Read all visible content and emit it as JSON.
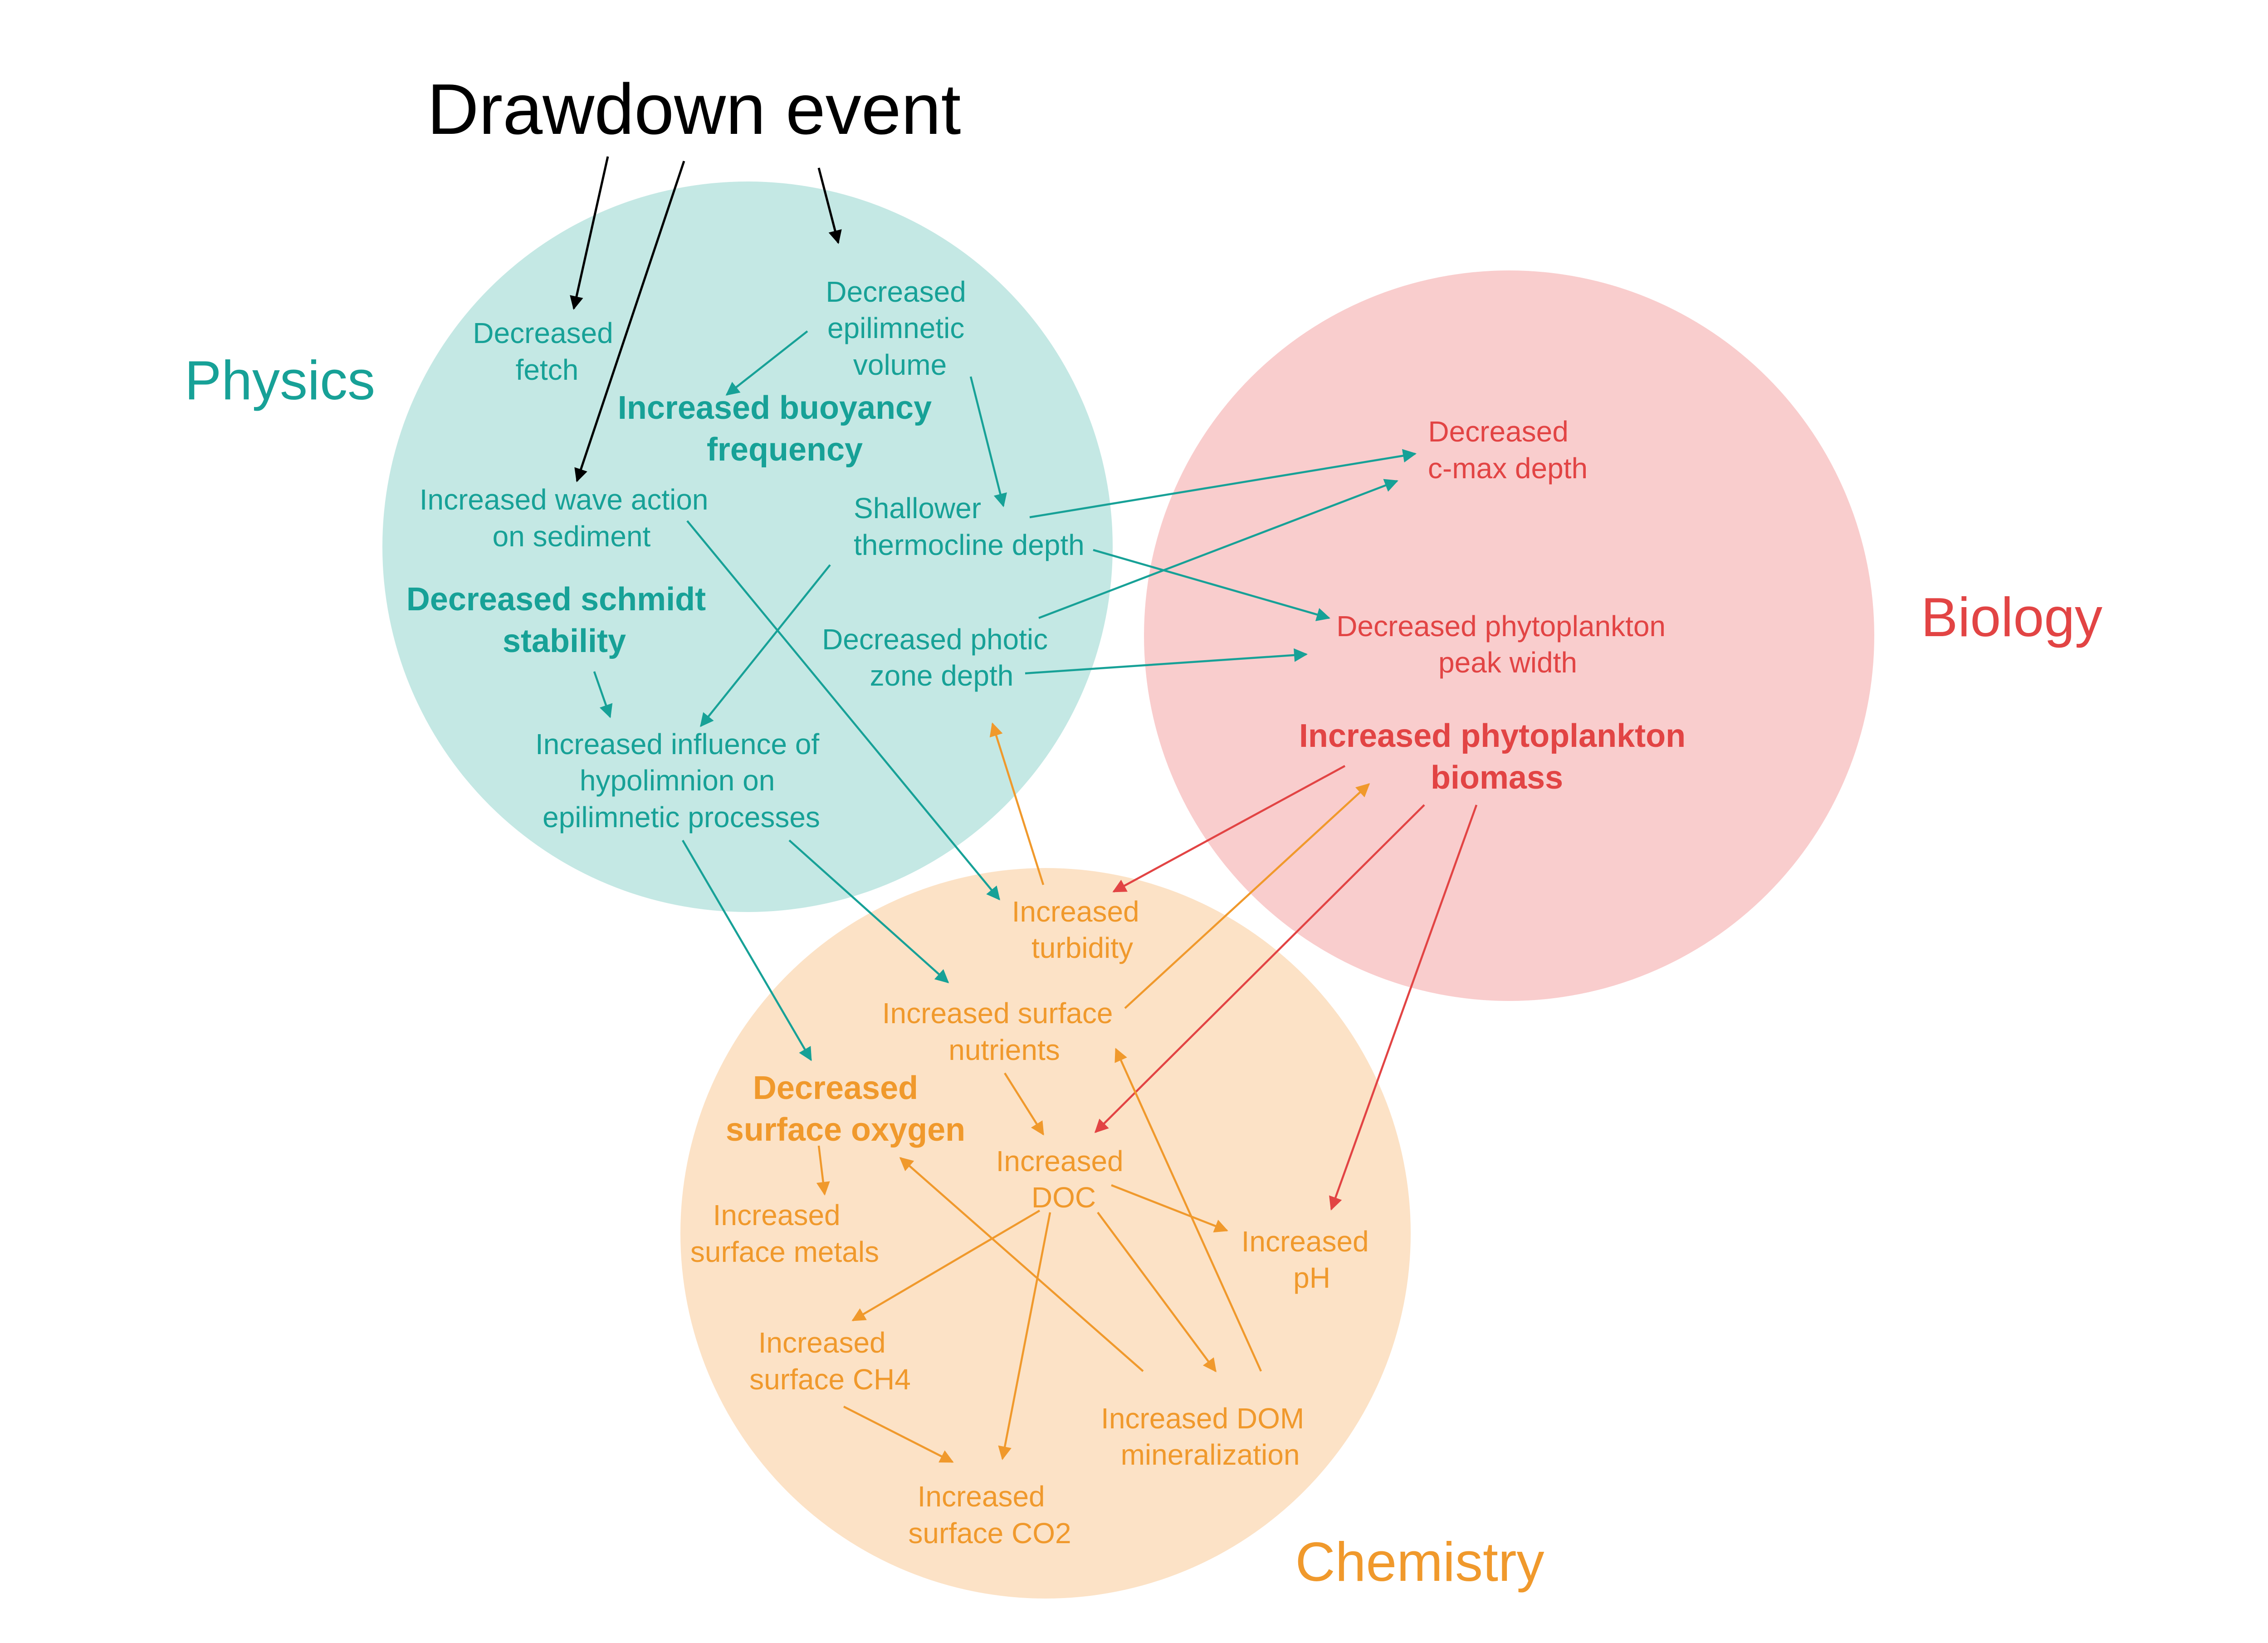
{
  "title": "Drawdown event",
  "colors": {
    "physics_fill": "#c4e8e4",
    "physics_text": "#17a197",
    "biology_fill": "#f9cdcd",
    "biology_text": "#e24444",
    "chemistry_fill": "#fce2c6",
    "chemistry_text": "#f0992c",
    "title_text": "#000000"
  },
  "groups": {
    "physics": "Physics",
    "biology": "Biology",
    "chemistry": "Chemistry"
  },
  "nodes": {
    "decreased_fetch": [
      "Decreased",
      "fetch"
    ],
    "decreased_epi_volume": [
      "Decreased",
      "epilimnetic",
      "volume"
    ],
    "increased_buoyancy": [
      "Increased buoyancy",
      "frequency"
    ],
    "increased_wave_action": [
      "Increased wave action",
      "on sediment"
    ],
    "shallower_thermocline": [
      "Shallower",
      "thermocline depth"
    ],
    "decreased_schmidt": [
      "Decreased schmidt",
      "stability"
    ],
    "decreased_photic": [
      "Decreased photic",
      "zone depth"
    ],
    "increased_hypolimnion": [
      "Increased influence of",
      "hypolimnion on",
      "epilimnetic processes"
    ],
    "decreased_cmax": [
      "Decreased",
      "c-max depth"
    ],
    "decreased_peak_width": [
      "Decreased phytoplankton",
      "peak width"
    ],
    "increased_phyto_biomass": [
      "Increased phytoplankton",
      "biomass"
    ],
    "increased_turbidity": [
      "Increased",
      "turbidity"
    ],
    "increased_surface_nutrients": [
      "Increased surface",
      "nutrients"
    ],
    "decreased_surface_oxygen": [
      "Decreased",
      "surface oxygen"
    ],
    "increased_doc": [
      "Increased",
      "DOC"
    ],
    "increased_surface_metals": [
      "Increased",
      "surface metals"
    ],
    "increased_ph": [
      "Increased",
      "pH"
    ],
    "increased_ch4": [
      "Increased",
      "surface CH4"
    ],
    "increased_dom": [
      "Increased DOM",
      "mineralization"
    ],
    "increased_co2": [
      "Increased",
      "surface CO2"
    ]
  },
  "edges": [
    {
      "from": "drawdown_event",
      "to": "decreased_fetch",
      "group": "title"
    },
    {
      "from": "drawdown_event",
      "to": "increased_wave_action",
      "group": "title"
    },
    {
      "from": "drawdown_event",
      "to": "decreased_epi_volume",
      "group": "title"
    },
    {
      "from": "decreased_epi_volume",
      "to": "increased_buoyancy",
      "group": "physics"
    },
    {
      "from": "decreased_epi_volume",
      "to": "shallower_thermocline",
      "group": "physics"
    },
    {
      "from": "decreased_schmidt",
      "to": "increased_hypolimnion",
      "group": "physics"
    },
    {
      "from": "shallower_thermocline",
      "to": "increased_hypolimnion",
      "group": "physics"
    },
    {
      "from": "shallower_thermocline",
      "to": "decreased_cmax",
      "group": "physics"
    },
    {
      "from": "shallower_thermocline",
      "to": "decreased_peak_width",
      "group": "physics"
    },
    {
      "from": "decreased_photic",
      "to": "decreased_cmax",
      "group": "physics"
    },
    {
      "from": "decreased_photic",
      "to": "decreased_peak_width",
      "group": "physics"
    },
    {
      "from": "increased_wave_action",
      "to": "increased_turbidity",
      "group": "physics"
    },
    {
      "from": "increased_hypolimnion",
      "to": "decreased_surface_oxygen",
      "group": "physics"
    },
    {
      "from": "increased_hypolimnion",
      "to": "increased_surface_nutrients",
      "group": "physics"
    },
    {
      "from": "increased_turbidity",
      "to": "decreased_photic",
      "group": "chemistry"
    },
    {
      "from": "increased_surface_nutrients",
      "to": "increased_phyto_biomass",
      "group": "chemistry"
    },
    {
      "from": "increased_phyto_biomass",
      "to": "increased_turbidity",
      "group": "biology"
    },
    {
      "from": "increased_phyto_biomass",
      "to": "increased_doc",
      "group": "biology"
    },
    {
      "from": "increased_phyto_biomass",
      "to": "increased_ph",
      "group": "biology"
    },
    {
      "from": "increased_surface_nutrients",
      "to": "increased_doc",
      "group": "chemistry"
    },
    {
      "from": "decreased_surface_oxygen",
      "to": "increased_surface_metals",
      "group": "chemistry"
    },
    {
      "from": "increased_doc",
      "to": "increased_ph",
      "group": "chemistry"
    },
    {
      "from": "increased_doc",
      "to": "increased_ch4",
      "group": "chemistry"
    },
    {
      "from": "increased_doc",
      "to": "increased_co2",
      "group": "chemistry"
    },
    {
      "from": "increased_doc",
      "to": "increased_dom",
      "group": "chemistry"
    },
    {
      "from": "increased_ch4",
      "to": "increased_co2",
      "group": "chemistry"
    },
    {
      "from": "increased_dom",
      "to": "decreased_surface_oxygen",
      "group": "chemistry"
    },
    {
      "from": "increased_dom",
      "to": "increased_surface_nutrients",
      "group": "chemistry"
    }
  ]
}
